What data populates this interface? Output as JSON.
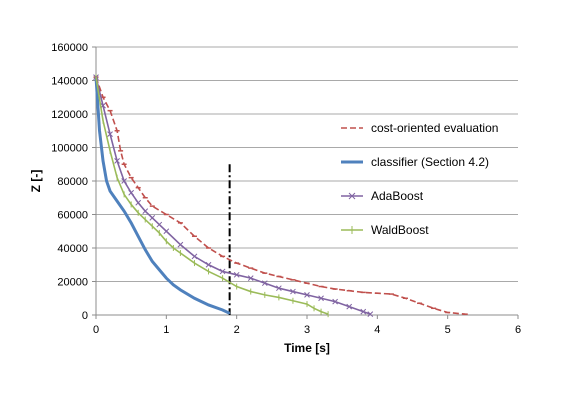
{
  "chart_data": {
    "type": "line",
    "title": "",
    "xlabel": "Time [s]",
    "ylabel": "Z [-]",
    "xlim": [
      0,
      6
    ],
    "ylim": [
      0,
      160000
    ],
    "x_ticks": [
      "0",
      "1",
      "2",
      "3",
      "4",
      "5",
      "6"
    ],
    "y_ticks": [
      "0",
      "20000",
      "40000",
      "60000",
      "80000",
      "100000",
      "120000",
      "140000",
      "160000"
    ],
    "grid": "horizontal",
    "legend_position": "right",
    "reference_line": {
      "x": 1.9,
      "y_top": 90000,
      "style": "dash-dot"
    },
    "series": [
      {
        "name": "cost-oriented evaluation",
        "color": "#c0504d",
        "marker": "dash",
        "points": [
          [
            0,
            142000
          ],
          [
            0.1,
            130000
          ],
          [
            0.2,
            122000
          ],
          [
            0.3,
            110000
          ],
          [
            0.35,
            98000
          ],
          [
            0.4,
            90000
          ],
          [
            0.5,
            82000
          ],
          [
            0.6,
            76000
          ],
          [
            0.7,
            70000
          ],
          [
            0.8,
            65000
          ],
          [
            1.0,
            60000
          ],
          [
            1.2,
            55000
          ],
          [
            1.4,
            47000
          ],
          [
            1.6,
            40000
          ],
          [
            1.8,
            35000
          ],
          [
            2.0,
            31000
          ],
          [
            2.2,
            28000
          ],
          [
            2.4,
            25000
          ],
          [
            2.6,
            23000
          ],
          [
            2.8,
            21000
          ],
          [
            3.0,
            19000
          ],
          [
            3.2,
            17000
          ],
          [
            3.4,
            15500
          ],
          [
            3.6,
            14500
          ],
          [
            3.8,
            13500
          ],
          [
            4.0,
            13000
          ],
          [
            4.2,
            12500
          ],
          [
            4.4,
            10000
          ],
          [
            4.6,
            7000
          ],
          [
            4.8,
            4000
          ],
          [
            5.0,
            1500
          ],
          [
            5.25,
            500
          ]
        ]
      },
      {
        "name": "classifier (Section 4.2)",
        "color": "#4f81bd",
        "marker": "none",
        "points": [
          [
            0,
            142000
          ],
          [
            0.05,
            110000
          ],
          [
            0.1,
            92000
          ],
          [
            0.15,
            80000
          ],
          [
            0.2,
            74000
          ],
          [
            0.3,
            68000
          ],
          [
            0.4,
            62000
          ],
          [
            0.5,
            55000
          ],
          [
            0.6,
            47000
          ],
          [
            0.7,
            39000
          ],
          [
            0.8,
            32000
          ],
          [
            0.9,
            27000
          ],
          [
            1.0,
            22000
          ],
          [
            1.1,
            18000
          ],
          [
            1.2,
            15000
          ],
          [
            1.4,
            10000
          ],
          [
            1.6,
            6000
          ],
          [
            1.8,
            3000
          ],
          [
            1.9,
            1000
          ]
        ]
      },
      {
        "name": "AdaBoost",
        "color": "#8064a2",
        "marker": "x",
        "points": [
          [
            0,
            142000
          ],
          [
            0.1,
            125000
          ],
          [
            0.2,
            108000
          ],
          [
            0.3,
            92000
          ],
          [
            0.4,
            80000
          ],
          [
            0.5,
            73000
          ],
          [
            0.6,
            67000
          ],
          [
            0.7,
            62000
          ],
          [
            0.8,
            58000
          ],
          [
            0.9,
            54000
          ],
          [
            1.0,
            50000
          ],
          [
            1.2,
            42000
          ],
          [
            1.4,
            35000
          ],
          [
            1.6,
            30000
          ],
          [
            1.8,
            26000
          ],
          [
            2.0,
            24000
          ],
          [
            2.2,
            22000
          ],
          [
            2.4,
            19000
          ],
          [
            2.6,
            16000
          ],
          [
            2.8,
            14000
          ],
          [
            3.0,
            12000
          ],
          [
            3.2,
            10000
          ],
          [
            3.4,
            8000
          ],
          [
            3.6,
            5000
          ],
          [
            3.8,
            2000
          ],
          [
            3.9,
            500
          ]
        ]
      },
      {
        "name": "WaldBoost",
        "color": "#9bbb59",
        "marker": "tick",
        "points": [
          [
            0,
            142000
          ],
          [
            0.1,
            116000
          ],
          [
            0.2,
            98000
          ],
          [
            0.3,
            82000
          ],
          [
            0.4,
            72000
          ],
          [
            0.5,
            66000
          ],
          [
            0.6,
            61000
          ],
          [
            0.7,
            57000
          ],
          [
            0.8,
            53000
          ],
          [
            0.9,
            49000
          ],
          [
            1.0,
            44000
          ],
          [
            1.1,
            40000
          ],
          [
            1.2,
            37000
          ],
          [
            1.4,
            31000
          ],
          [
            1.6,
            26000
          ],
          [
            1.8,
            22000
          ],
          [
            2.0,
            17000
          ],
          [
            2.2,
            14000
          ],
          [
            2.4,
            12000
          ],
          [
            2.6,
            10500
          ],
          [
            2.8,
            8500
          ],
          [
            3.0,
            6500
          ],
          [
            3.1,
            4000
          ],
          [
            3.2,
            2000
          ],
          [
            3.3,
            500
          ]
        ]
      }
    ]
  }
}
